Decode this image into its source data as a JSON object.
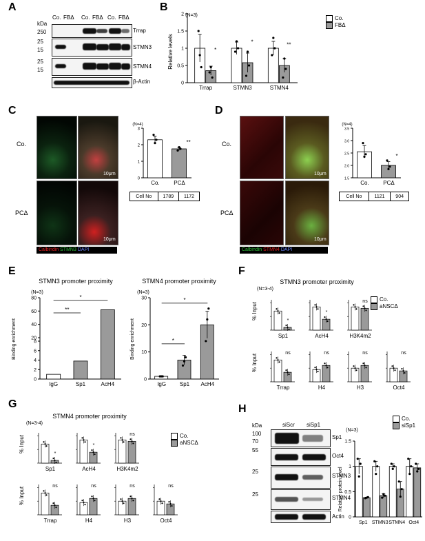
{
  "panels": {
    "A": {
      "label": "A",
      "kda": "kDa",
      "lanes": [
        "Co.",
        "FBΔ",
        "Co.",
        "FBΔ",
        "Co.",
        "FBΔ"
      ],
      "markers": [
        "250",
        "25",
        "15",
        "25",
        "15"
      ],
      "proteins": [
        "Trrap",
        "STMN3",
        "STMN4",
        "β-Actin"
      ]
    },
    "B": {
      "label": "B",
      "n": "(N=3)",
      "ylabel": "Relative levels",
      "yticks": [
        "0",
        "0.5",
        "1",
        "1.5",
        "2"
      ],
      "categories": [
        "Trrap",
        "STMN3",
        "STMN4"
      ],
      "legend": [
        "Co.",
        "FBΔ"
      ],
      "sig": [
        "*",
        "*",
        "**"
      ]
    },
    "C": {
      "label": "C",
      "rows": [
        "Co.",
        "PCΔ"
      ],
      "scale": "10μm",
      "stain": [
        "Calbindin",
        "STMN3",
        "DAPI"
      ],
      "n": "(N=4)",
      "yticks": [
        "0",
        "1",
        "2",
        "3"
      ],
      "xcats": [
        "Co.",
        "PCΔ"
      ],
      "sig": "**",
      "cell_label": "Cell No",
      "cell_values": [
        "1789",
        "1172"
      ]
    },
    "D": {
      "label": "D",
      "rows": [
        "Co.",
        "PCΔ"
      ],
      "scale": "10μm",
      "stain": [
        "Calbindin",
        "STMN4",
        "DAPI"
      ],
      "n": "(N=4)",
      "yticks": [
        "1.5",
        "2.0",
        "2.5",
        "3.0",
        "3.5"
      ],
      "xcats": [
        "Co.",
        "PCΔ"
      ],
      "sig": "*",
      "cell_label": "Cell No",
      "cell_values": [
        "1121",
        "904"
      ]
    },
    "E": {
      "label": "E",
      "ylabel": "Binding enrichment",
      "left_title": "STMN3 promoter proximity",
      "right_title": "STMN4 promoter proximity",
      "n": "(N=3)",
      "categories": [
        "IgG",
        "Sp1",
        "AcH4"
      ],
      "left_yticks": [
        "0",
        "2",
        "4",
        "6",
        "8",
        "20",
        "40",
        "60",
        "80"
      ],
      "right_yticks": [
        "0",
        "10",
        "20",
        "30"
      ],
      "sig_left": [
        "**",
        "*"
      ],
      "sig_right": [
        "*",
        "*"
      ]
    },
    "F": {
      "label": "F",
      "title": "STMN3 promoter proximity",
      "n": "(N=3-4)",
      "ylabel": "% Input",
      "legend": [
        "Co.",
        "aNSCΔ"
      ],
      "subplots": [
        "Sp1",
        "AcH4",
        "H3K4m2",
        "Trrap",
        "H4",
        "H3",
        "Oct4"
      ],
      "ns": "ns",
      "star": "*"
    },
    "G": {
      "label": "G",
      "title": "STMN4 promoter proximity",
      "n": "(N=3-4)",
      "ylabel": "% Input",
      "legend": [
        "Co.",
        "aNSCΔ"
      ],
      "subplots": [
        "Sp1",
        "AcH4",
        "H3K4m2",
        "Trrap",
        "H4",
        "H3",
        "Oct4"
      ],
      "ns": "ns",
      "star": "*"
    },
    "H": {
      "label": "H",
      "kda": "kDa",
      "lanes": [
        "siScr",
        "siSp1"
      ],
      "markers": [
        "100",
        "70",
        "55",
        "25",
        "25"
      ],
      "proteins": [
        "Sp1",
        "Oct4",
        "STMN3",
        "STMN4",
        "Actin"
      ],
      "n": "(N=3)",
      "ylabel": "Relative protein level",
      "yticks": [
        "0",
        "0.5",
        "1",
        "1.5"
      ],
      "categories": [
        "Sp1",
        "STMN3",
        "STMN4",
        "Oct4"
      ],
      "legend": [
        "Co.",
        "siSp1"
      ]
    }
  },
  "colors": {
    "control": "#ffffff",
    "mutant": "#9a9a9a",
    "calbindin": "#e02020",
    "stmn3": "#2fbf3a",
    "dapi": "#2040d0"
  },
  "chart_data": [
    {
      "type": "bar",
      "panel": "B",
      "categories": [
        "Trrap",
        "STMN3",
        "STMN4"
      ],
      "series": [
        {
          "name": "Co.",
          "values": [
            1.0,
            1.0,
            1.0
          ]
        },
        {
          "name": "FBΔ",
          "values": [
            0.35,
            0.58,
            0.5
          ]
        }
      ],
      "ylim": [
        0,
        2
      ]
    },
    {
      "type": "bar",
      "panel": "C",
      "categories": [
        "Co.",
        "PCΔ"
      ],
      "values": [
        2.3,
        1.75
      ],
      "ylim": [
        0,
        3
      ]
    },
    {
      "type": "bar",
      "panel": "D",
      "categories": [
        "Co.",
        "PCΔ"
      ],
      "values": [
        2.55,
        2.0
      ],
      "ylim": [
        1.5,
        3.5
      ]
    },
    {
      "type": "bar",
      "panel": "E-left",
      "categories": [
        "IgG",
        "Sp1",
        "AcH4"
      ],
      "values": [
        1,
        3.8,
        62
      ]
    },
    {
      "type": "bar",
      "panel": "E-right",
      "categories": [
        "IgG",
        "Sp1",
        "AcH4"
      ],
      "values": [
        1,
        7,
        20
      ],
      "ylim": [
        0,
        30
      ]
    },
    {
      "type": "bar",
      "panel": "H",
      "categories": [
        "Sp1",
        "STMN3",
        "STMN4",
        "Oct4"
      ],
      "series": [
        {
          "name": "Co.",
          "values": [
            1.0,
            1.0,
            1.0,
            1.0
          ]
        },
        {
          "name": "siSp1",
          "values": [
            0.38,
            0.42,
            0.55,
            0.97
          ]
        }
      ],
      "ylim": [
        0,
        1.5
      ]
    }
  ]
}
